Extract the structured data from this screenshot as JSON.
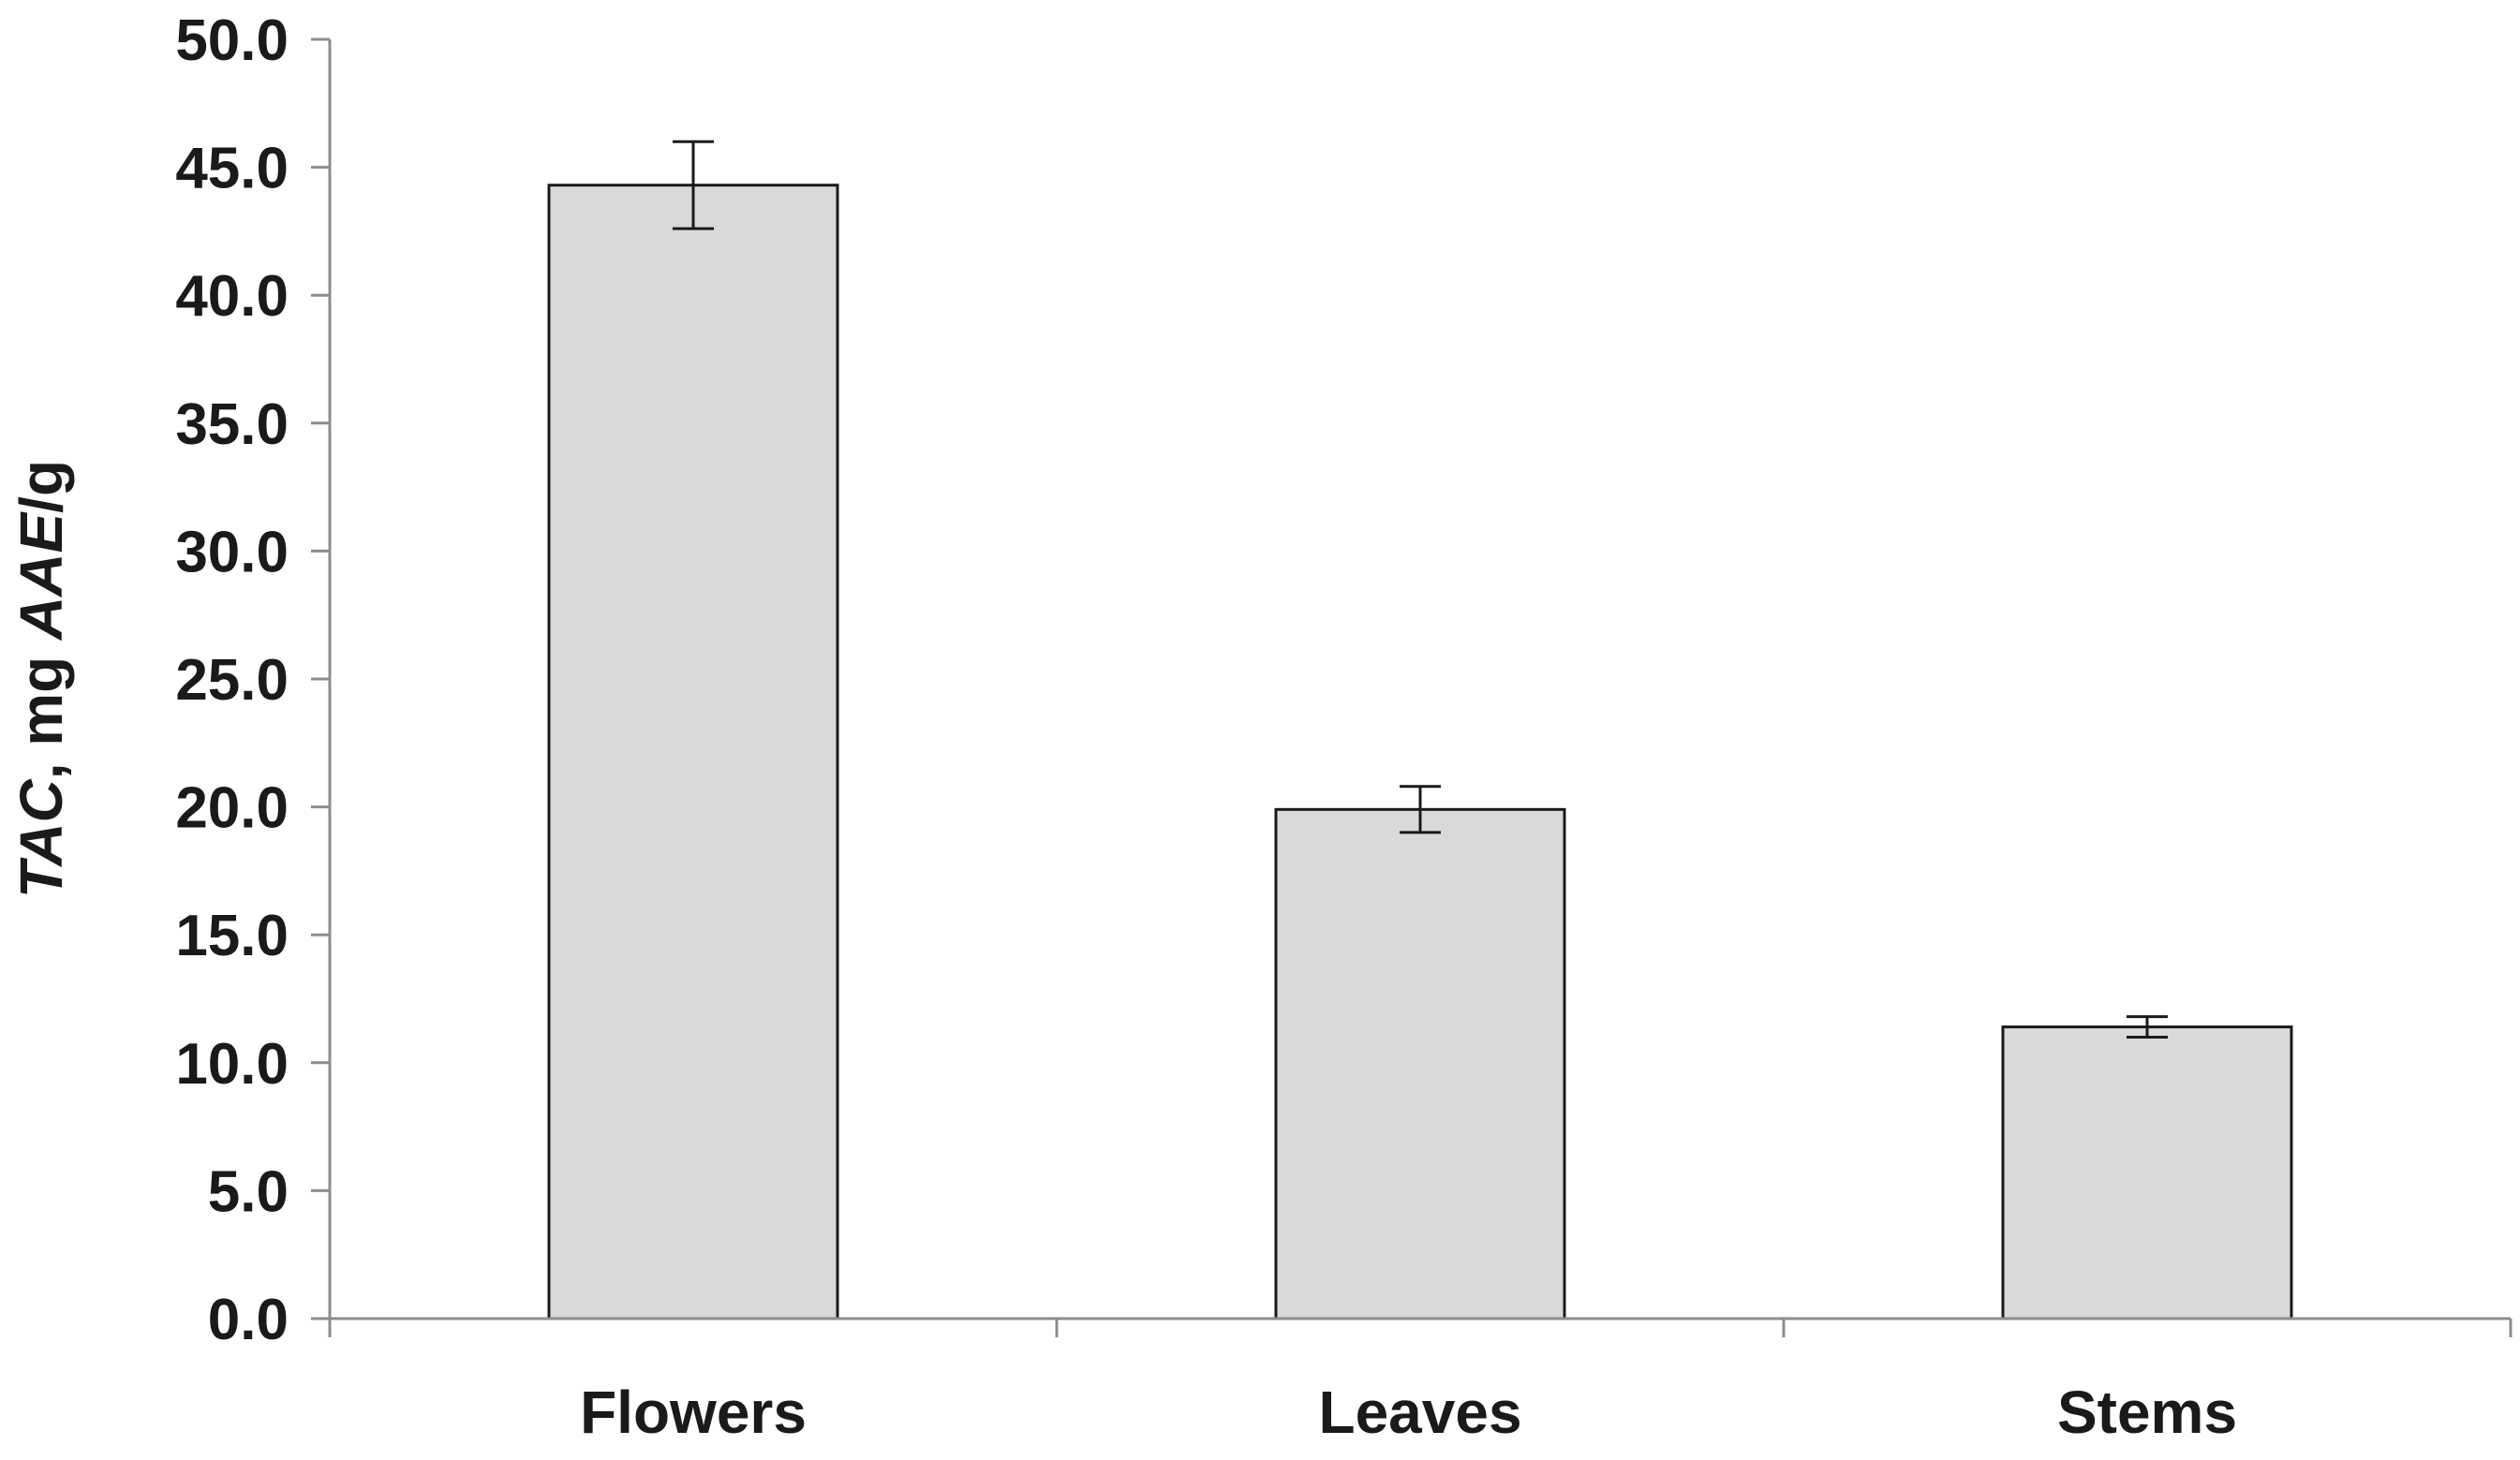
{
  "chart_data": {
    "type": "bar",
    "categories": [
      "Flowers",
      "Leaves",
      "Stems"
    ],
    "values": [
      44.3,
      19.9,
      11.4
    ],
    "errors": [
      1.7,
      0.9,
      0.4
    ],
    "ylabel_parts": [
      {
        "text": "TAC",
        "italic": true
      },
      {
        "text": ", mg ",
        "italic": false
      },
      {
        "text": "AAE",
        "italic": true
      },
      {
        "text": "/g",
        "italic": false
      }
    ],
    "xlabel": "",
    "ylim": [
      0,
      50
    ],
    "yticks": [
      "0.0",
      "5.0",
      "10.0",
      "15.0",
      "20.0",
      "25.0",
      "30.0",
      "35.0",
      "40.0",
      "45.0",
      "50.0"
    ],
    "grid": false,
    "legend": "none",
    "colors": {
      "bar_fill": "#d9d9d9",
      "bar_stroke": "#1a1a1a",
      "axis": "#8c8c8c",
      "error_bar": "#1a1a1a"
    }
  }
}
